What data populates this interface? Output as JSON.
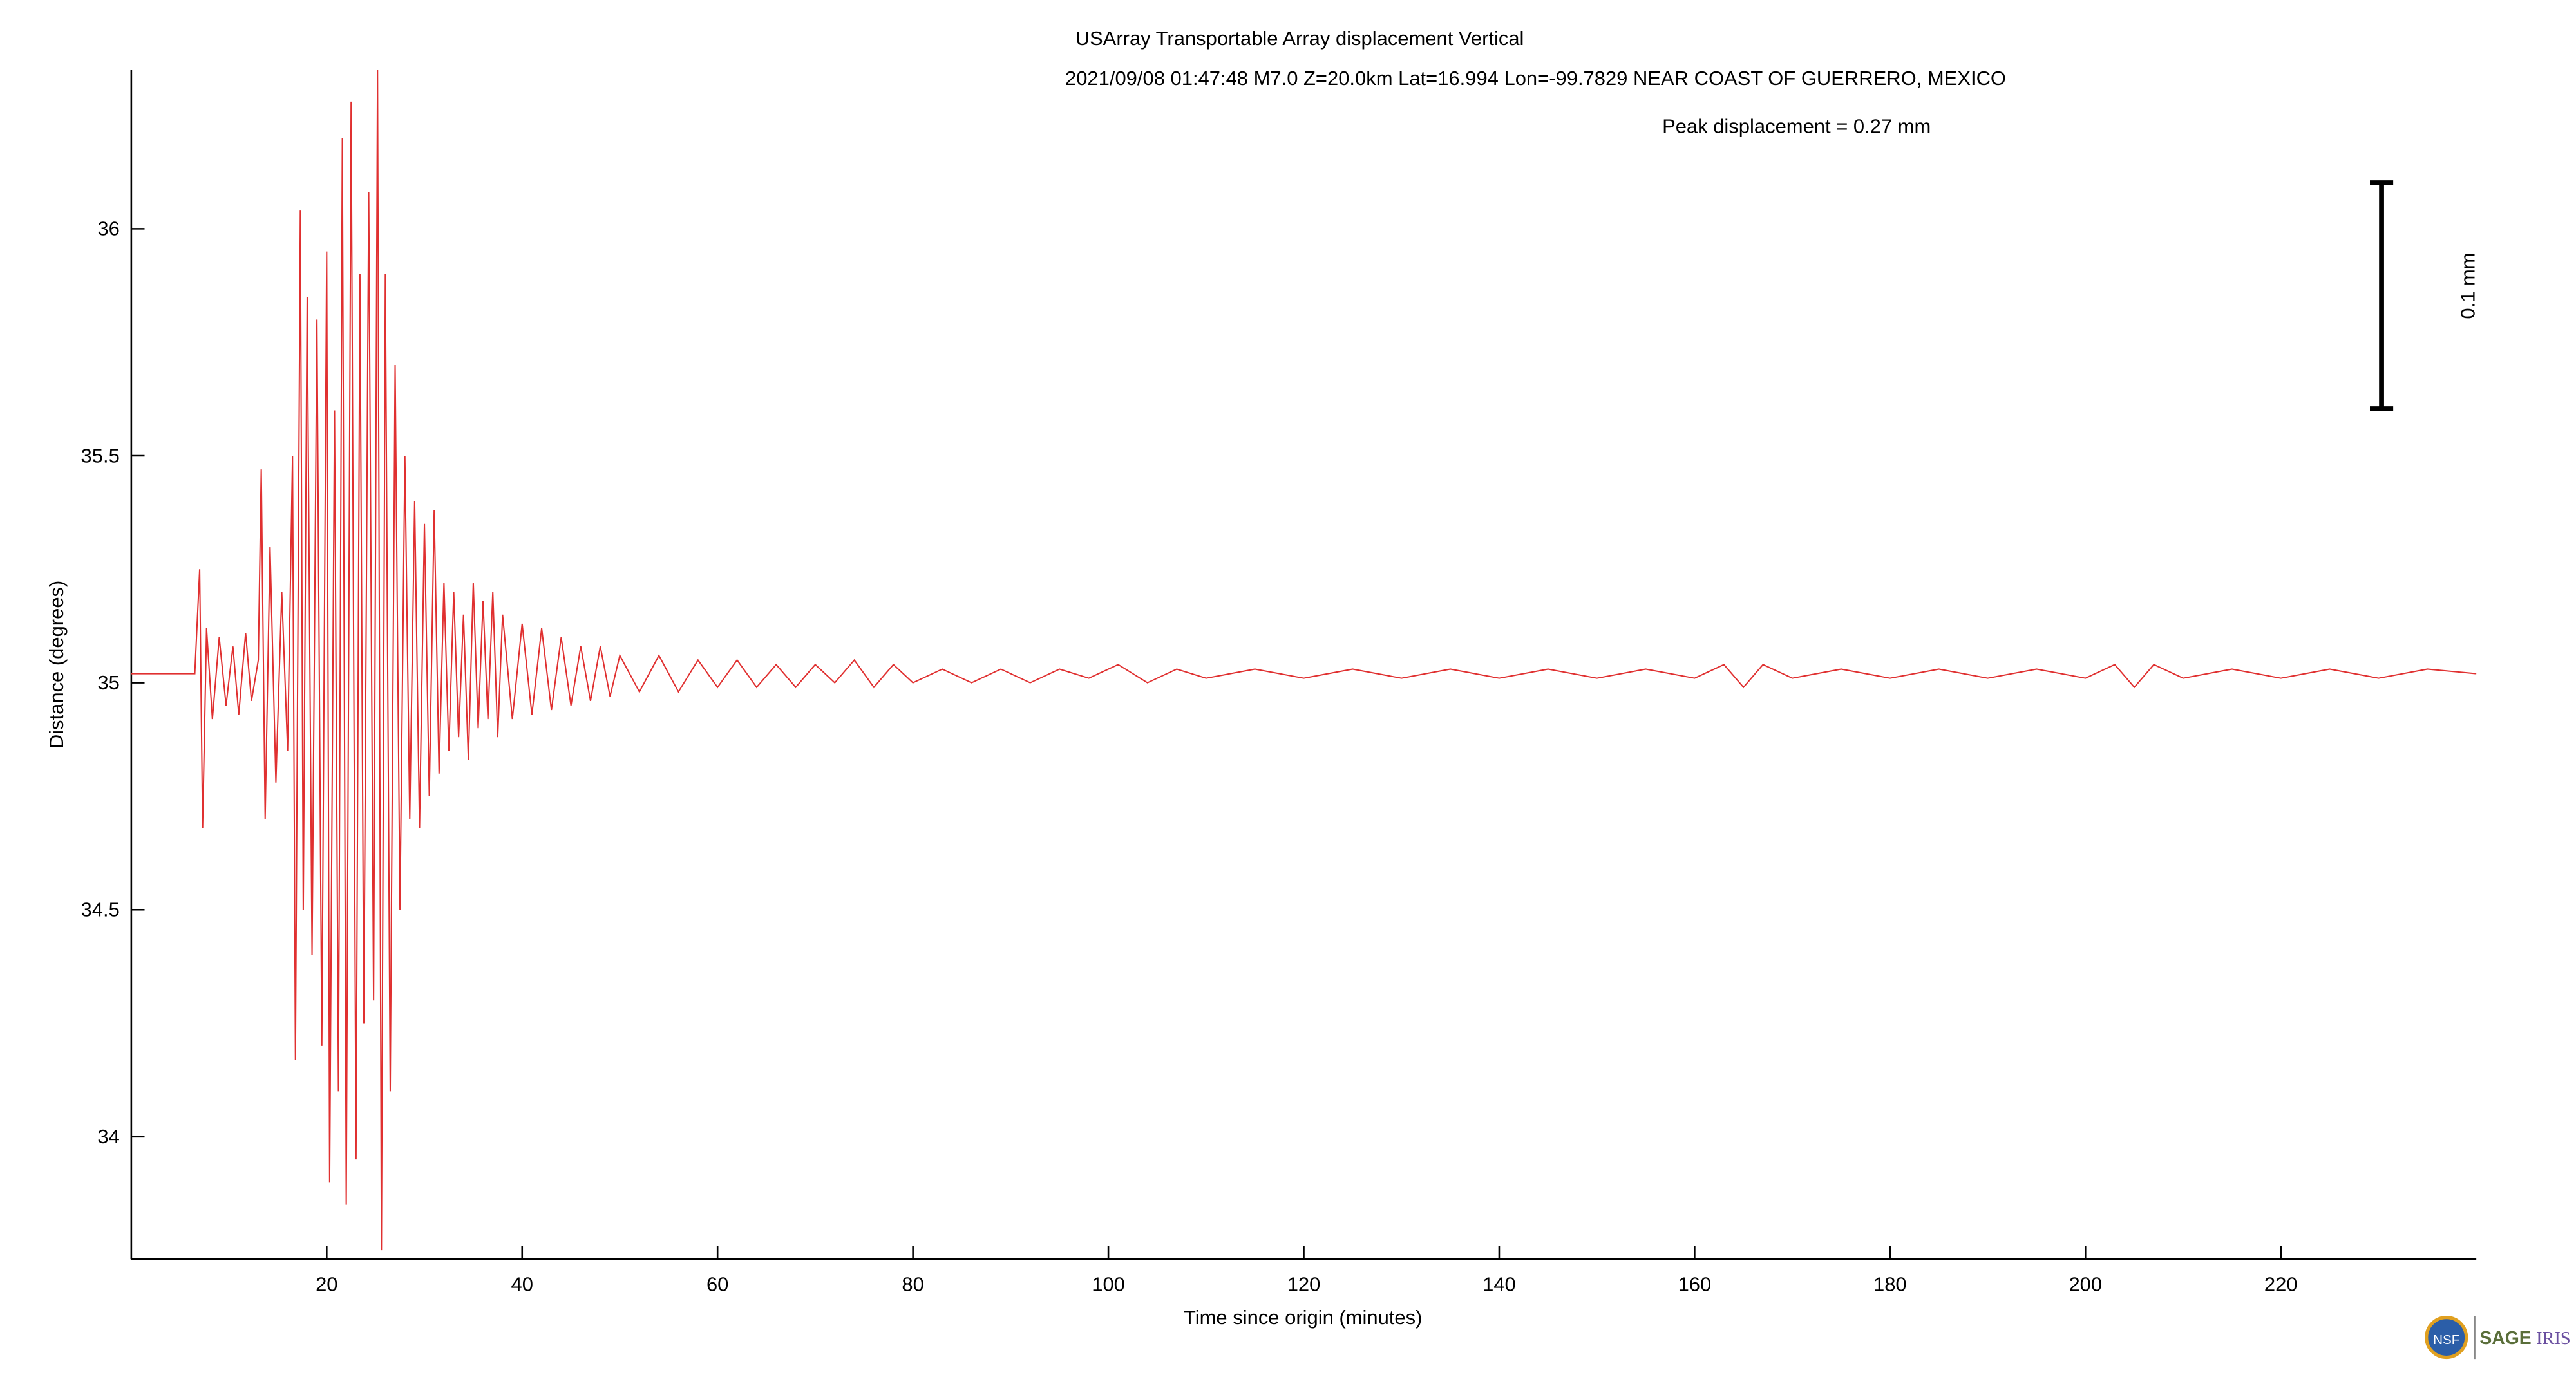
{
  "chart_data": {
    "type": "line",
    "title": "USArray Transportable Array displacement   Vertical",
    "subtitle": "2021/09/08  01:47:48  M7.0  Z=20.0km  Lat=16.994 Lon=-99.7829  NEAR COAST OF GUERRERO, MEXICO",
    "annotation": "Peak displacement = 0.27 mm",
    "scale_label": "0.1 mm",
    "xlabel": "Time since origin (minutes)",
    "ylabel": "Distance (degrees)",
    "logo": {
      "nsf": "NSF",
      "sage": "SAGE",
      "iris": "IRIS"
    },
    "color": "#e03030",
    "xlim": [
      0,
      240
    ],
    "xticks": [
      20,
      40,
      60,
      80,
      100,
      120,
      140,
      160,
      180,
      200,
      220
    ],
    "ylim": [
      33.73,
      36.35
    ],
    "yticks": [
      34,
      34.5,
      35,
      35.5,
      36
    ],
    "x": [
      0,
      6.5,
      7,
      7.3,
      7.7,
      8.3,
      9,
      9.7,
      10.4,
      11,
      11.7,
      12.3,
      13,
      13.3,
      13.7,
      14.2,
      14.8,
      15.4,
      16,
      16.5,
      16.8,
      17.3,
      17.6,
      18,
      18.5,
      19,
      19.5,
      20,
      20.3,
      20.8,
      21.2,
      21.6,
      22,
      22.5,
      23,
      23.4,
      23.8,
      24.3,
      24.8,
      25.2,
      25.6,
      26,
      26.5,
      27,
      27.5,
      28,
      28.5,
      29,
      29.5,
      30,
      30.5,
      31,
      31.5,
      32,
      32.5,
      33,
      33.5,
      34,
      34.5,
      35,
      35.5,
      36,
      36.5,
      37,
      37.5,
      38,
      39,
      40,
      41,
      42,
      43,
      44,
      45,
      46,
      47,
      48,
      49,
      50,
      52,
      54,
      56,
      58,
      60,
      62,
      64,
      66,
      68,
      70,
      72,
      74,
      76,
      78,
      80,
      83,
      86,
      89,
      92,
      95,
      98,
      101,
      104,
      107,
      110,
      115,
      120,
      125,
      130,
      135,
      140,
      145,
      150,
      155,
      160,
      163,
      165,
      167,
      170,
      175,
      180,
      185,
      190,
      195,
      200,
      203,
      205,
      207,
      210,
      215,
      220,
      225,
      230,
      235,
      240
    ],
    "values": [
      35.02,
      35.02,
      35.25,
      34.68,
      35.12,
      34.92,
      35.1,
      34.95,
      35.08,
      34.93,
      35.11,
      34.96,
      35.05,
      35.47,
      34.7,
      35.3,
      34.78,
      35.2,
      34.85,
      35.5,
      34.17,
      36.04,
      34.5,
      35.85,
      34.4,
      35.8,
      34.2,
      35.95,
      33.9,
      35.6,
      34.1,
      36.2,
      33.85,
      36.28,
      33.95,
      35.9,
      34.25,
      36.08,
      34.3,
      36.35,
      33.75,
      35.9,
      34.1,
      35.7,
      34.5,
      35.5,
      34.7,
      35.4,
      34.68,
      35.35,
      34.75,
      35.38,
      34.8,
      35.22,
      34.85,
      35.2,
      34.88,
      35.15,
      34.83,
      35.22,
      34.9,
      35.18,
      34.92,
      35.2,
      34.88,
      35.15,
      34.92,
      35.13,
      34.93,
      35.12,
      34.94,
      35.1,
      34.95,
      35.08,
      34.96,
      35.08,
      34.97,
      35.06,
      34.98,
      35.06,
      34.98,
      35.05,
      34.99,
      35.05,
      34.99,
      35.04,
      34.99,
      35.04,
      35.0,
      35.05,
      34.99,
      35.04,
      35.0,
      35.03,
      35.0,
      35.03,
      35.0,
      35.03,
      35.01,
      35.04,
      35.0,
      35.03,
      35.01,
      35.03,
      35.01,
      35.03,
      35.01,
      35.03,
      35.01,
      35.03,
      35.01,
      35.03,
      35.01,
      35.04,
      34.99,
      35.04,
      35.01,
      35.03,
      35.01,
      35.03,
      35.01,
      35.03,
      35.01,
      35.04,
      34.99,
      35.04,
      35.01,
      35.03,
      35.01,
      35.03,
      35.01,
      35.03,
      35.02
    ]
  }
}
